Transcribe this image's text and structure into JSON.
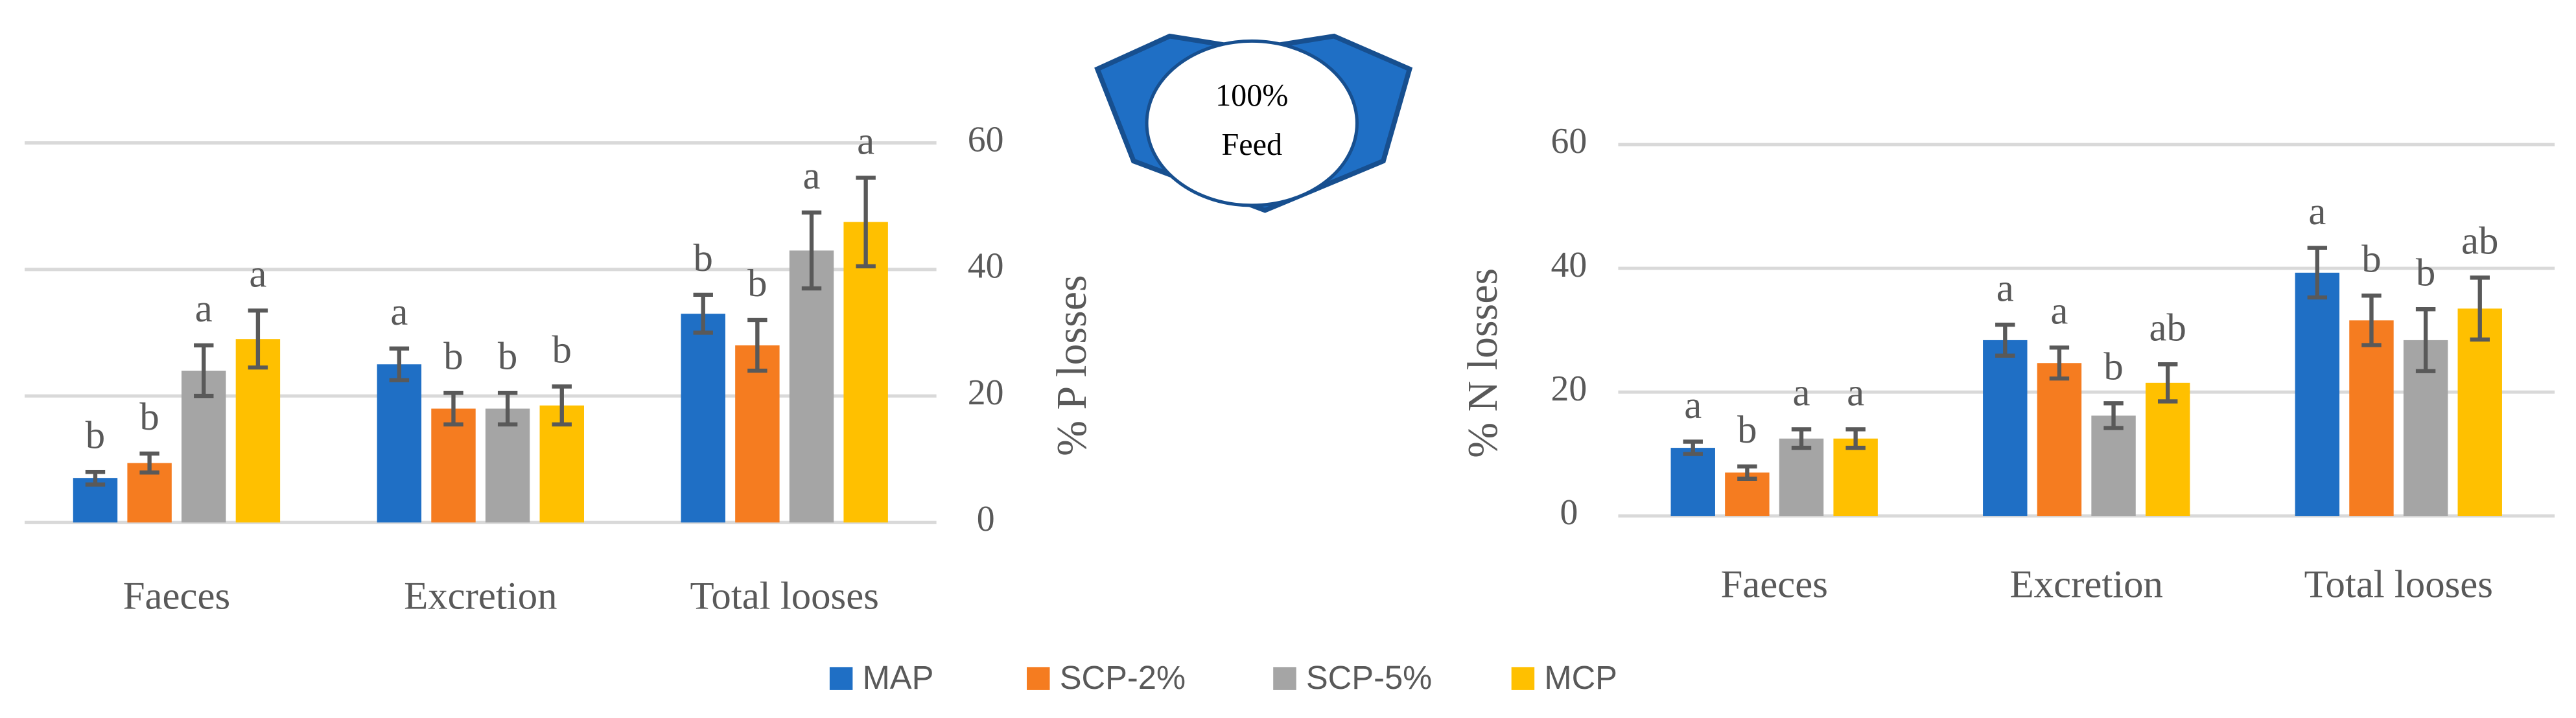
{
  "chart_data": [
    {
      "type": "bar",
      "y_label": "% P losses",
      "y_axis_position": "right",
      "categories": [
        "Faeces",
        "Excretion",
        "Total looses"
      ],
      "ylim": [
        0,
        60
      ],
      "yticks": [
        0,
        20,
        40,
        60
      ],
      "grid": true,
      "series": [
        {
          "name": "MAP",
          "color": "#1f6fc5",
          "values": [
            7,
            25,
            33
          ],
          "errors": [
            1,
            2.5,
            3
          ],
          "letters": [
            "b",
            "a",
            "b"
          ]
        },
        {
          "name": "SCP-2%",
          "color": "#f57c20",
          "values": [
            9.4,
            18,
            28
          ],
          "errors": [
            1.5,
            2.5,
            4
          ],
          "letters": [
            "b",
            "b",
            "b"
          ]
        },
        {
          "name": "SCP-5%",
          "color": "#a5a5a5",
          "values": [
            24,
            18,
            43
          ],
          "errors": [
            4,
            2.5,
            6
          ],
          "letters": [
            "a",
            "b",
            "a"
          ]
        },
        {
          "name": "MCP",
          "color": "#ffc000",
          "values": [
            29,
            18.5,
            47.5
          ],
          "errors": [
            4.5,
            3,
            7
          ],
          "letters": [
            "a",
            "b",
            "a"
          ]
        }
      ]
    },
    {
      "type": "bar",
      "y_label": "% N losses",
      "y_axis_position": "left",
      "categories": [
        "Faeces",
        "Excretion",
        "Total looses"
      ],
      "ylim": [
        0,
        60
      ],
      "yticks": [
        0,
        20,
        40,
        60
      ],
      "grid": true,
      "series": [
        {
          "color": "#1f6fc5",
          "values": [
            11,
            28.4,
            39.3
          ],
          "errors": [
            1,
            2.5,
            4
          ],
          "letters": [
            "a",
            "a",
            "a"
          ]
        },
        {
          "color": "#f57c20",
          "values": [
            7,
            24.7,
            31.6
          ],
          "errors": [
            1,
            2.5,
            4
          ],
          "letters": [
            "b",
            "a",
            "b"
          ]
        },
        {
          "color": "#a5a5a5",
          "values": [
            12.5,
            16.2,
            28.4
          ],
          "errors": [
            1.5,
            2,
            5
          ],
          "letters": [
            "a",
            "b",
            "b"
          ]
        },
        {
          "color": "#ffc000",
          "values": [
            12.5,
            21.5,
            33.5
          ],
          "errors": [
            1.5,
            3,
            5
          ],
          "letters": [
            "a",
            "ab",
            "ab"
          ]
        }
      ]
    }
  ],
  "diagram": {
    "lines": [
      "100%",
      "Feed"
    ]
  }
}
